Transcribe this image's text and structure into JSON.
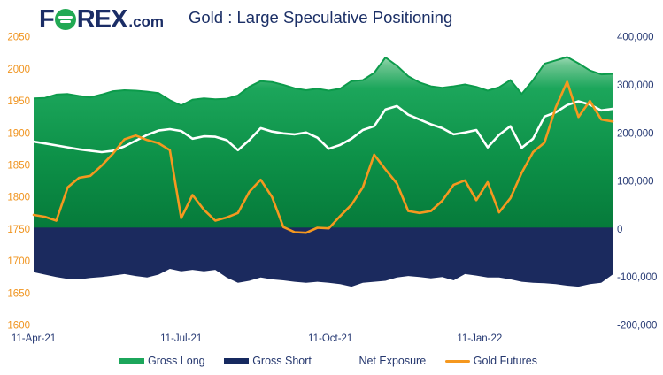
{
  "header": {
    "logo": {
      "part1": "F",
      "part2": "REX",
      "part3": ".com",
      "o_circle_color": "#21a953"
    },
    "title": "Gold : Large Speculative Positioning"
  },
  "colors": {
    "green": "#1ca65b",
    "green_stroke": "#0c9b4b",
    "green_gradient": [
      "#cfeeda",
      "#6cc591",
      "#1ca65b",
      "#0d9148",
      "#067a3a"
    ],
    "navy": "#1b2a5e",
    "orange": "#f5981f",
    "white": "#ffffff",
    "axis_left_color": "#f0941f",
    "axis_right_color": "#273a74",
    "title_color": "#1b2f66"
  },
  "legend": {
    "items": [
      {
        "label": "Gross Long",
        "swatch": "green-area"
      },
      {
        "label": "Gross Short",
        "swatch": "navy-area"
      },
      {
        "label": "Net Exposure",
        "swatch": "white-line"
      },
      {
        "label": "Gold Futures",
        "swatch": "orange-line"
      }
    ]
  },
  "chart_data": {
    "type": "combo-area-line",
    "x_axis": {
      "tick_labels": [
        "11-Apr-21",
        "11-Jul-21",
        "11-Oct-21",
        "11-Jan-22"
      ],
      "tick_week_offsets": [
        0,
        13,
        26.14,
        39.29
      ],
      "points_are_weekly": true,
      "n_points": 52
    },
    "left_axis": {
      "label_values": [
        2050,
        2000,
        1950,
        1900,
        1850,
        1800,
        1750,
        1700,
        1650,
        1600
      ],
      "range": [
        1600,
        2050
      ],
      "units": "gold price (USD/oz)"
    },
    "right_axis": {
      "labels": [
        "400,000",
        "300,000",
        "200,000",
        "100,000",
        "0",
        "-100,000",
        "-200,000"
      ],
      "label_values": [
        400000,
        300000,
        200000,
        100000,
        0,
        -100000,
        -200000
      ],
      "range": [
        -200000,
        400000
      ],
      "units": "contracts"
    },
    "grid": false,
    "legend_position": "bottom",
    "series": [
      {
        "name": "Gross Long",
        "type": "area",
        "axis": "right",
        "values": [
          272000,
          273000,
          280000,
          281000,
          277000,
          274000,
          280000,
          287000,
          289000,
          288000,
          286000,
          283000,
          268000,
          257000,
          269000,
          272000,
          270000,
          271000,
          278000,
          296000,
          308000,
          306000,
          300000,
          293000,
          289000,
          292000,
          288000,
          292000,
          308000,
          310000,
          325000,
          357000,
          340000,
          318000,
          305000,
          297000,
          294000,
          297000,
          301000,
          296000,
          288000,
          295000,
          310000,
          281000,
          310000,
          344000,
          351000,
          358000,
          345000,
          330000,
          322000,
          323000
        ]
      },
      {
        "name": "Gross Short",
        "type": "area",
        "axis": "right",
        "values": [
          -90000,
          -95000,
          -100000,
          -104000,
          -105000,
          -102000,
          -100000,
          -97000,
          -94000,
          -98000,
          -101000,
          -95000,
          -83000,
          -88000,
          -85000,
          -88000,
          -85000,
          -101000,
          -112000,
          -108000,
          -101000,
          -105000,
          -107000,
          -110000,
          -112000,
          -110000,
          -112000,
          -115000,
          -120000,
          -112000,
          -110000,
          -108000,
          -101000,
          -98000,
          -100000,
          -103000,
          -100000,
          -107000,
          -94000,
          -97000,
          -101000,
          -101000,
          -105000,
          -110000,
          -112000,
          -113000,
          -115000,
          -118000,
          -120000,
          -115000,
          -112000,
          -95000
        ]
      },
      {
        "name": "Net Exposure",
        "type": "line",
        "axis": "right",
        "values": [
          182000,
          178000,
          174000,
          170000,
          166000,
          163000,
          160000,
          163000,
          172000,
          184000,
          196000,
          205000,
          208000,
          204000,
          188000,
          193000,
          192000,
          185000,
          164000,
          185000,
          210000,
          203000,
          199000,
          197000,
          201000,
          190000,
          167000,
          175000,
          188000,
          206000,
          214000,
          249000,
          256000,
          238000,
          228000,
          218000,
          210000,
          197000,
          201000,
          206000,
          170000,
          196000,
          214000,
          169000,
          188000,
          234000,
          243000,
          258000,
          266000,
          259000,
          247000,
          250000
        ]
      },
      {
        "name": "Gold Futures",
        "type": "line",
        "axis": "left",
        "values": [
          1772,
          1769,
          1763,
          1815,
          1830,
          1833,
          1849,
          1868,
          1890,
          1896,
          1889,
          1884,
          1873,
          1767,
          1803,
          1780,
          1763,
          1768,
          1775,
          1808,
          1827,
          1800,
          1753,
          1745,
          1744,
          1752,
          1751,
          1770,
          1788,
          1815,
          1866,
          1843,
          1821,
          1778,
          1775,
          1778,
          1794,
          1819,
          1826,
          1795,
          1823,
          1776,
          1798,
          1838,
          1870,
          1885,
          1940,
          1980,
          1925,
          1950,
          1921,
          1918
        ]
      }
    ]
  }
}
